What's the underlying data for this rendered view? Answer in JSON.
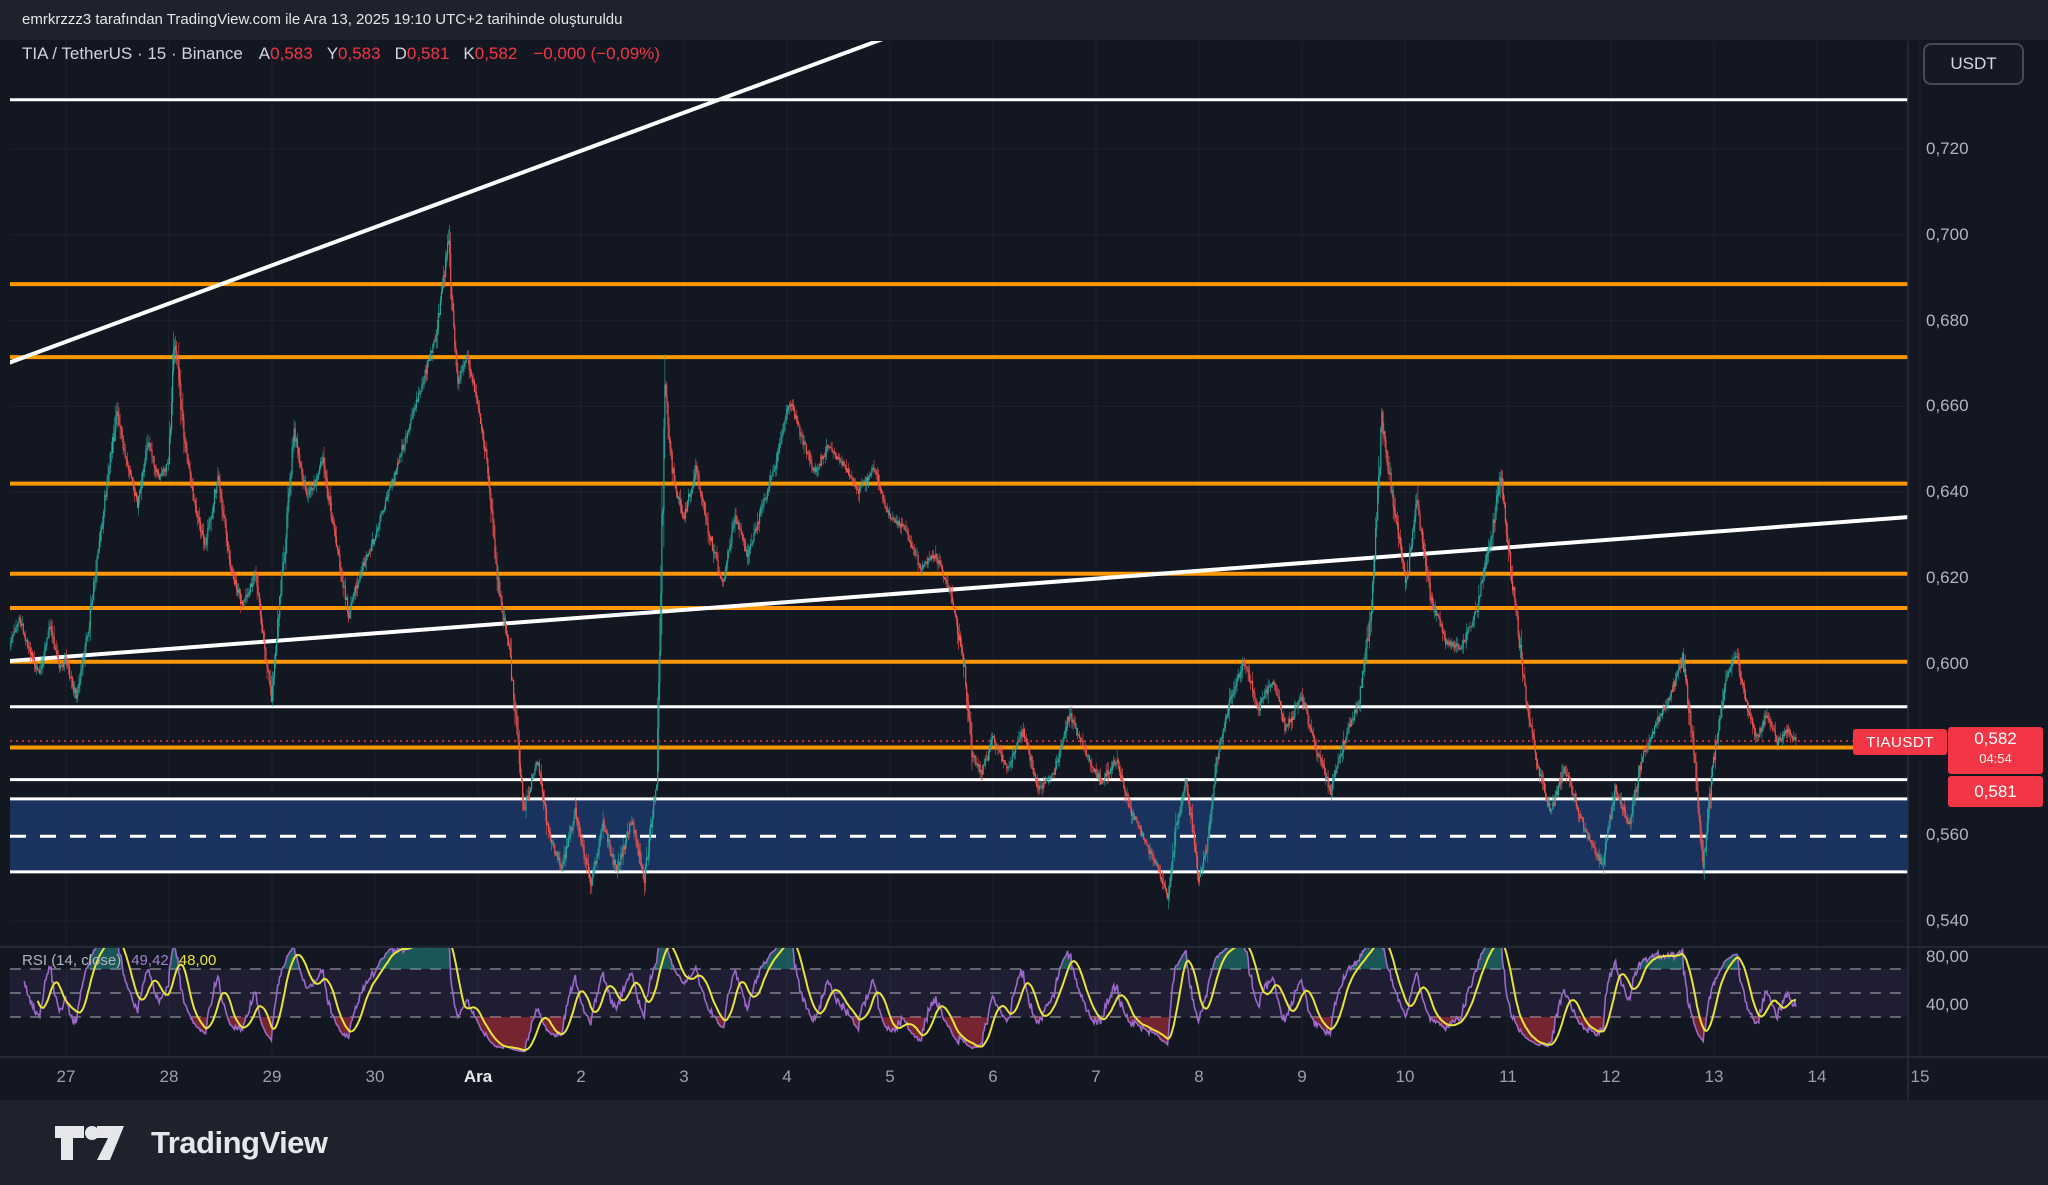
{
  "attribution": {
    "text": "emrkrzzz3 tarafından TradingView.com ile Ara 13, 2025 19:10 UTC+2 tarihinde oluşturuldu"
  },
  "header": {
    "title": "TIA / TetherUS · 15 · Binance",
    "ohlc": [
      {
        "k": "A",
        "v": "0,583"
      },
      {
        "k": "Y",
        "v": "0,583"
      },
      {
        "k": "D",
        "v": "0,581"
      },
      {
        "k": "K",
        "v": "0,582"
      }
    ],
    "change": "−0,000 (−0,09%)"
  },
  "axis_button": {
    "label": "USDT"
  },
  "price_scale": {
    "ticks": [
      {
        "label": "0,720",
        "value": 0.72
      },
      {
        "label": "0,700",
        "value": 0.7
      },
      {
        "label": "0,680",
        "value": 0.68
      },
      {
        "label": "0,660",
        "value": 0.66
      },
      {
        "label": "0,640",
        "value": 0.64
      },
      {
        "label": "0,620",
        "value": 0.62
      },
      {
        "label": "0,600",
        "value": 0.6
      },
      {
        "label": "0,560",
        "value": 0.56
      },
      {
        "label": "0,540",
        "value": 0.54
      }
    ],
    "badge": {
      "symbol": "TIAUSDT",
      "price": "0,582",
      "countdown": "04:54",
      "low": "0,581"
    }
  },
  "time_scale": {
    "labels": [
      "27",
      "28",
      "29",
      "30",
      "Ara",
      "2",
      "3",
      "4",
      "5",
      "6",
      "7",
      "8",
      "9",
      "10",
      "11",
      "12",
      "13",
      "14",
      "15"
    ],
    "bold_index": 4
  },
  "rsi_pane": {
    "title": "RSI",
    "params": "(14, close)",
    "value_main": "49,42",
    "value_smooth": "48,00",
    "ticks": [
      {
        "label": "80,00",
        "value": 80
      },
      {
        "label": "40,00",
        "value": 40
      }
    ]
  },
  "footer": {
    "brand": "TradingView"
  },
  "colors": {
    "background": "#131722",
    "panel": "#1e222d",
    "candle_up": "#26a69a",
    "candle_down": "#ef5350",
    "level_orange": "#ff9800",
    "level_white": "#ffffff",
    "zone_fill": "#1d3a6e",
    "badge_red": "#f23645",
    "rsi_line": "#9b69c9",
    "rsi_smooth": "#e8e33c",
    "axis_text": "#b2b5be"
  },
  "chart_data": {
    "type": "candlestick",
    "title": "TIA / TetherUS 15m Binance",
    "symbol": "TIAUSDT",
    "interval_minutes": 15,
    "last_price": 0.582,
    "change_pct": -0.09,
    "price_range_visible": [
      0.534,
      0.746
    ],
    "x_axis_days": [
      "27",
      "28",
      "29",
      "30",
      "Ara",
      "2",
      "3",
      "4",
      "5",
      "6",
      "7",
      "8",
      "9",
      "10",
      "11",
      "12",
      "13",
      "14",
      "15"
    ],
    "grid": true,
    "levels": [
      {
        "price": 0.7315,
        "color": "white"
      },
      {
        "price": 0.6885,
        "color": "orange"
      },
      {
        "price": 0.6715,
        "color": "orange"
      },
      {
        "price": 0.642,
        "color": "orange"
      },
      {
        "price": 0.621,
        "color": "orange"
      },
      {
        "price": 0.613,
        "color": "orange"
      },
      {
        "price": 0.6005,
        "color": "orange"
      },
      {
        "price": 0.59,
        "color": "white"
      },
      {
        "price": 0.5805,
        "color": "orange"
      },
      {
        "price": 0.573,
        "color": "white"
      }
    ],
    "zone": {
      "top": 0.5685,
      "bottom": 0.5515,
      "mid_dashed": 0.5598
    },
    "trendlines": [
      {
        "d1": -0.64,
        "p1": 0.6694,
        "d2": 8.16,
        "p2": 0.7477
      },
      {
        "d1": -0.64,
        "p1": 0.6005,
        "d2": 17.88,
        "p2": 0.6342
      }
    ],
    "current_price_line": 0.582,
    "anchors": [
      [
        -0.55,
        0.604
      ],
      [
        -0.45,
        0.611
      ],
      [
        -0.35,
        0.603
      ],
      [
        -0.25,
        0.5975
      ],
      [
        -0.15,
        0.609
      ],
      [
        -0.05,
        0.5985
      ],
      [
        0.0,
        0.601
      ],
      [
        0.1,
        0.5925
      ],
      [
        0.22,
        0.608
      ],
      [
        0.35,
        0.632
      ],
      [
        0.5,
        0.6595
      ],
      [
        0.6,
        0.646
      ],
      [
        0.7,
        0.637
      ],
      [
        0.8,
        0.6515
      ],
      [
        0.9,
        0.6435
      ],
      [
        1.0,
        0.6465
      ],
      [
        1.06,
        0.6775
      ],
      [
        1.15,
        0.6525
      ],
      [
        1.25,
        0.638
      ],
      [
        1.35,
        0.627
      ],
      [
        1.48,
        0.6435
      ],
      [
        1.6,
        0.6225
      ],
      [
        1.72,
        0.6135
      ],
      [
        1.85,
        0.621
      ],
      [
        2.0,
        0.5925
      ],
      [
        2.12,
        0.625
      ],
      [
        2.22,
        0.6545
      ],
      [
        2.35,
        0.6385
      ],
      [
        2.5,
        0.6475
      ],
      [
        2.62,
        0.6285
      ],
      [
        2.75,
        0.612
      ],
      [
        2.88,
        0.6225
      ],
      [
        3.0,
        0.6295
      ],
      [
        3.15,
        0.641
      ],
      [
        3.3,
        0.6525
      ],
      [
        3.45,
        0.6645
      ],
      [
        3.6,
        0.6765
      ],
      [
        3.72,
        0.6985
      ],
      [
        3.8,
        0.6655
      ],
      [
        3.9,
        0.6715
      ],
      [
        4.0,
        0.6615
      ],
      [
        4.1,
        0.6455
      ],
      [
        4.2,
        0.6185
      ],
      [
        4.32,
        0.601
      ],
      [
        4.45,
        0.5655
      ],
      [
        4.58,
        0.5775
      ],
      [
        4.7,
        0.5595
      ],
      [
        4.82,
        0.5525
      ],
      [
        4.95,
        0.5655
      ],
      [
        5.1,
        0.5485
      ],
      [
        5.22,
        0.5625
      ],
      [
        5.35,
        0.5515
      ],
      [
        5.5,
        0.5635
      ],
      [
        5.62,
        0.5495
      ],
      [
        5.74,
        0.5725
      ],
      [
        5.82,
        0.6655
      ],
      [
        5.9,
        0.6435
      ],
      [
        6.0,
        0.6335
      ],
      [
        6.12,
        0.6455
      ],
      [
        6.25,
        0.6305
      ],
      [
        6.38,
        0.6185
      ],
      [
        6.5,
        0.6345
      ],
      [
        6.62,
        0.6255
      ],
      [
        6.75,
        0.6355
      ],
      [
        6.88,
        0.6455
      ],
      [
        7.03,
        0.6615
      ],
      [
        7.15,
        0.6525
      ],
      [
        7.28,
        0.6445
      ],
      [
        7.4,
        0.6505
      ],
      [
        7.55,
        0.6465
      ],
      [
        7.7,
        0.6405
      ],
      [
        7.85,
        0.6455
      ],
      [
        8.0,
        0.6345
      ],
      [
        8.15,
        0.6315
      ],
      [
        8.3,
        0.6225
      ],
      [
        8.45,
        0.6255
      ],
      [
        8.6,
        0.6155
      ],
      [
        8.72,
        0.6005
      ],
      [
        8.8,
        0.5795
      ],
      [
        8.9,
        0.5745
      ],
      [
        9.0,
        0.5825
      ],
      [
        9.15,
        0.5755
      ],
      [
        9.3,
        0.5845
      ],
      [
        9.45,
        0.5705
      ],
      [
        9.6,
        0.5745
      ],
      [
        9.75,
        0.5885
      ],
      [
        9.9,
        0.5795
      ],
      [
        10.05,
        0.5725
      ],
      [
        10.2,
        0.5775
      ],
      [
        10.35,
        0.5655
      ],
      [
        10.5,
        0.5575
      ],
      [
        10.62,
        0.5515
      ],
      [
        10.7,
        0.5455
      ],
      [
        10.78,
        0.5615
      ],
      [
        10.88,
        0.5735
      ],
      [
        11.0,
        0.5505
      ],
      [
        11.08,
        0.5565
      ],
      [
        11.18,
        0.5775
      ],
      [
        11.3,
        0.5915
      ],
      [
        11.45,
        0.6005
      ],
      [
        11.58,
        0.5895
      ],
      [
        11.72,
        0.5965
      ],
      [
        11.85,
        0.5845
      ],
      [
        12.0,
        0.5925
      ],
      [
        12.15,
        0.5795
      ],
      [
        12.28,
        0.5705
      ],
      [
        12.42,
        0.5825
      ],
      [
        12.55,
        0.5905
      ],
      [
        12.68,
        0.6125
      ],
      [
        12.78,
        0.6565
      ],
      [
        12.9,
        0.6365
      ],
      [
        13.02,
        0.6185
      ],
      [
        13.12,
        0.6385
      ],
      [
        13.25,
        0.6155
      ],
      [
        13.4,
        0.6055
      ],
      [
        13.55,
        0.6035
      ],
      [
        13.7,
        0.6125
      ],
      [
        13.85,
        0.6305
      ],
      [
        13.93,
        0.6445
      ],
      [
        14.05,
        0.6185
      ],
      [
        14.18,
        0.5925
      ],
      [
        14.3,
        0.5755
      ],
      [
        14.42,
        0.5655
      ],
      [
        14.55,
        0.5755
      ],
      [
        14.68,
        0.5665
      ],
      [
        14.8,
        0.5585
      ],
      [
        14.92,
        0.5535
      ],
      [
        15.05,
        0.5705
      ],
      [
        15.18,
        0.5625
      ],
      [
        15.3,
        0.5775
      ],
      [
        15.45,
        0.5865
      ],
      [
        15.58,
        0.5925
      ],
      [
        15.7,
        0.6015
      ],
      [
        15.8,
        0.5825
      ],
      [
        15.9,
        0.5535
      ],
      [
        16.0,
        0.5775
      ],
      [
        16.12,
        0.5965
      ],
      [
        16.22,
        0.6025
      ],
      [
        16.32,
        0.5905
      ],
      [
        16.42,
        0.5825
      ],
      [
        16.52,
        0.5885
      ],
      [
        16.62,
        0.5815
      ],
      [
        16.72,
        0.5845
      ],
      [
        16.8,
        0.582
      ]
    ],
    "rsi": {
      "period": 14,
      "smooth": 14,
      "levels": [
        70,
        50,
        30
      ],
      "band": [
        30,
        70
      ],
      "current": 49.42,
      "current_smooth": 48.0,
      "range_ticks": [
        80,
        40
      ]
    }
  }
}
